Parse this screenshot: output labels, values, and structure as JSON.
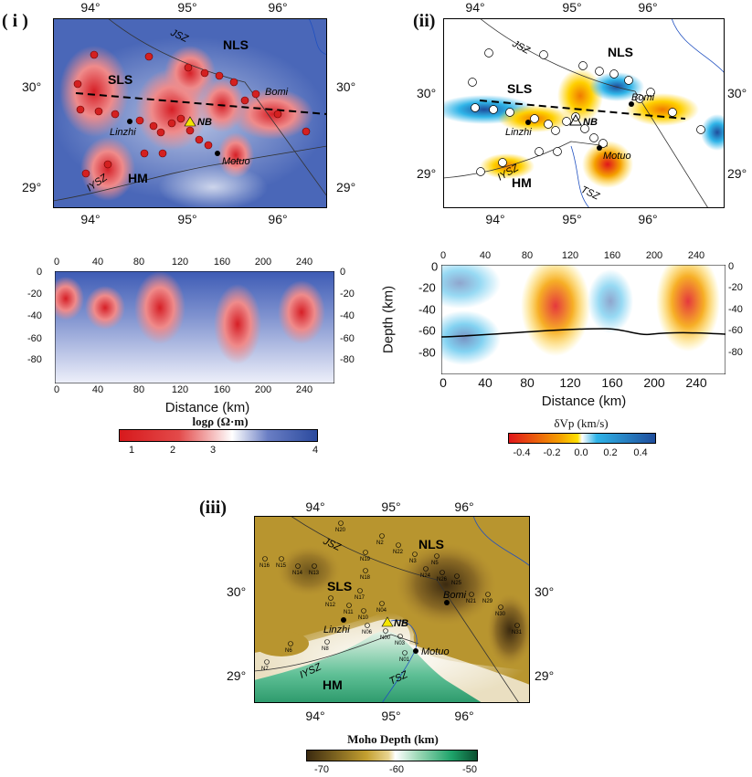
{
  "panel_i": {
    "label": "( i )",
    "lon_ticks": [
      "94°",
      "95°",
      "96°"
    ],
    "lat_ticks": [
      "30°",
      "29°"
    ],
    "regions": {
      "nls": "NLS",
      "sls": "SLS",
      "hm": "HM"
    },
    "faults": {
      "jsz": "JSZ",
      "iysz": "IYSZ"
    },
    "places": {
      "linzhi": "Linzhi",
      "motuo": "Motuo",
      "bomi": "Bomi",
      "nb": "NB"
    },
    "profile": {
      "distance_ticks": [
        "0",
        "40",
        "80",
        "120",
        "160",
        "200",
        "240"
      ],
      "depth_ticks": [
        "0",
        "-20",
        "-40",
        "-60",
        "-80"
      ],
      "xlabel": "Distance (km)"
    },
    "colorbar": {
      "title": "logρ (Ω·m)",
      "ticks": [
        "1",
        "2",
        "3",
        "4"
      ],
      "range": [
        0.8,
        4
      ],
      "colors": [
        "#d7191c",
        "#ffffff",
        "#2b4a9e"
      ]
    }
  },
  "panel_ii": {
    "label": "(ii)",
    "lon_ticks": [
      "94°",
      "95°",
      "96°"
    ],
    "lat_ticks": [
      "30°",
      "29°"
    ],
    "regions": {
      "nls": "NLS",
      "sls": "SLS",
      "hm": "HM"
    },
    "faults": {
      "jsz": "JSZ",
      "iysz": "IYSZ",
      "tsz": "TSZ"
    },
    "places": {
      "linzhi": "Linzhi",
      "motuo": "Motuo",
      "bomi": "Bomi",
      "nb": "NB"
    },
    "profile": {
      "distance_ticks": [
        "0",
        "40",
        "80",
        "120",
        "160",
        "200",
        "240"
      ],
      "depth_ticks": [
        "0",
        "-20",
        "-40",
        "-60",
        "-80"
      ],
      "xlabel": "Distance (km)",
      "ylabel": "Depth (km)"
    },
    "colorbar": {
      "title": "δVp (km/s)",
      "ticks": [
        "-0.4",
        "-0.2",
        "0.0",
        "0.2",
        "0.4"
      ],
      "range": [
        -0.5,
        0.5
      ],
      "colors": [
        "#e0161b",
        "#f5a000",
        "#ffffff",
        "#2fb4e8",
        "#1f4d9c"
      ]
    }
  },
  "panel_iii": {
    "label": "(iii)",
    "lon_ticks": [
      "94°",
      "95°",
      "96°"
    ],
    "lat_ticks": [
      "30°",
      "29°"
    ],
    "regions": {
      "nls": "NLS",
      "sls": "SLS",
      "hm": "HM"
    },
    "faults": {
      "jsz": "JSZ",
      "iysz": "IYSZ",
      "tsz": "TSZ"
    },
    "places": {
      "linzhi": "Linzhi",
      "motuo": "Motuo",
      "bomi": "Bomi",
      "nb": "NB"
    },
    "stations": [
      "N20",
      "N2",
      "N22",
      "N3",
      "N5",
      "N24",
      "N26",
      "N25",
      "N21",
      "N29",
      "N30",
      "N31",
      "N16",
      "N15",
      "N14",
      "N13",
      "N12",
      "N19",
      "N18",
      "N17",
      "N11",
      "N10",
      "N06",
      "N04",
      "N00",
      "N03",
      "N01",
      "N8",
      "N6",
      "N7"
    ],
    "colorbar": {
      "title": "Moho Depth (km)",
      "ticks": [
        "-70",
        "-60",
        "-50"
      ],
      "range": [
        -72,
        -49
      ],
      "colors": [
        "#3b2a10",
        "#c4a030",
        "#ffffff",
        "#3fb583",
        "#0b4f30"
      ]
    }
  }
}
